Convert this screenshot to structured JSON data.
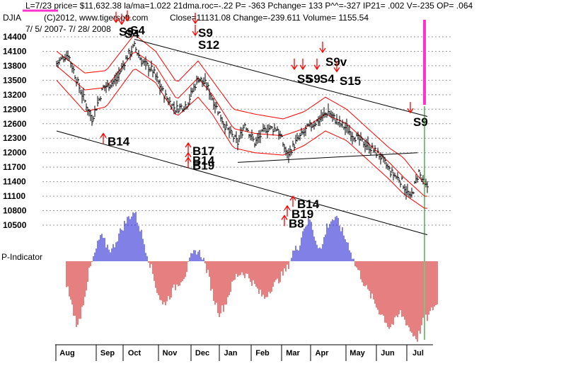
{
  "header": {
    "line1": "L=7/23  price= $11,632.38  la/ma=1.022 21dma.roc=-.22 P= -363 Pchange=  133 P^^=-327 IP21= .002 V=-235 OP= .064",
    "symbol": "DJIA",
    "copyright": "(C)2012, www.tigersoft.com",
    "close_info": "Close=11131.08  Change=-239.611 Volume= 1155.54",
    "date_range": "7/ 5/ 2007- 7/ 28/ 2008"
  },
  "colors": {
    "price_bars": "#000000",
    "bands": "#ff0000",
    "signal_arrows": "#ff0000",
    "magenta_marker": "#ff33cc",
    "p_positive": "#0000cc",
    "p_negative": "#cc0000",
    "current_line": "#008000",
    "grid": "#999999"
  },
  "p_indicator_label": "P-Indicator",
  "chart_data": {
    "type": "bar",
    "title": "DJIA",
    "y_ticks": [
      14400,
      14100,
      13800,
      13500,
      13200,
      12900,
      12600,
      12300,
      12000,
      11700,
      11400,
      11100,
      10800,
      10500
    ],
    "ylim": [
      10400,
      14500
    ],
    "months": [
      "Aug",
      "Sep",
      "Oct",
      "Nov",
      "Dec",
      "Jan",
      "Feb",
      "Mar",
      "Apr",
      "May",
      "Jun",
      "Jul"
    ],
    "price_path": [
      [
        0,
        13850
      ],
      [
        8,
        14050
      ],
      [
        16,
        13350
      ],
      [
        25,
        12700
      ],
      [
        33,
        13350
      ],
      [
        42,
        13500
      ],
      [
        50,
        14000
      ],
      [
        55,
        14200
      ],
      [
        60,
        13900
      ],
      [
        68,
        13700
      ],
      [
        76,
        13200
      ],
      [
        84,
        12900
      ],
      [
        92,
        13000
      ],
      [
        100,
        13550
      ],
      [
        106,
        13400
      ],
      [
        112,
        13000
      ],
      [
        120,
        12500
      ],
      [
        128,
        12200
      ],
      [
        133,
        12600
      ],
      [
        140,
        12200
      ],
      [
        148,
        12500
      ],
      [
        156,
        12500
      ],
      [
        163,
        11950
      ],
      [
        170,
        12250
      ],
      [
        177,
        12500
      ],
      [
        184,
        12650
      ],
      [
        192,
        12850
      ],
      [
        198,
        12650
      ],
      [
        205,
        12500
      ],
      [
        212,
        12300
      ],
      [
        220,
        12150
      ],
      [
        228,
        11950
      ],
      [
        236,
        11600
      ],
      [
        244,
        11400
      ],
      [
        250,
        11050
      ],
      [
        256,
        11600
      ],
      [
        260,
        11300
      ]
    ],
    "upper_band": [
      [
        0,
        14100
      ],
      [
        20,
        13650
      ],
      [
        35,
        13700
      ],
      [
        55,
        14450
      ],
      [
        70,
        14100
      ],
      [
        85,
        13450
      ],
      [
        100,
        13900
      ],
      [
        110,
        13500
      ],
      [
        125,
        12900
      ],
      [
        140,
        12800
      ],
      [
        160,
        12700
      ],
      [
        175,
        12850
      ],
      [
        190,
        13150
      ],
      [
        205,
        12900
      ],
      [
        220,
        12500
      ],
      [
        235,
        12100
      ],
      [
        245,
        11900
      ],
      [
        260,
        11350
      ]
    ],
    "middle_band": [
      [
        0,
        13800
      ],
      [
        20,
        13300
      ],
      [
        35,
        13350
      ],
      [
        55,
        14100
      ],
      [
        70,
        13800
      ],
      [
        85,
        13100
      ],
      [
        100,
        13550
      ],
      [
        110,
        13200
      ],
      [
        125,
        12500
      ],
      [
        140,
        12400
      ],
      [
        160,
        12350
      ],
      [
        175,
        12500
      ],
      [
        190,
        12800
      ],
      [
        205,
        12600
      ],
      [
        220,
        12200
      ],
      [
        235,
        11800
      ],
      [
        245,
        11500
      ],
      [
        260,
        11100
      ]
    ],
    "lower_band": [
      [
        0,
        13500
      ],
      [
        20,
        12850
      ],
      [
        35,
        12950
      ],
      [
        55,
        13750
      ],
      [
        70,
        13450
      ],
      [
        85,
        12750
      ],
      [
        100,
        13150
      ],
      [
        110,
        12800
      ],
      [
        125,
        12100
      ],
      [
        140,
        12000
      ],
      [
        160,
        11950
      ],
      [
        175,
        12150
      ],
      [
        190,
        12450
      ],
      [
        205,
        12250
      ],
      [
        220,
        11850
      ],
      [
        235,
        11450
      ],
      [
        245,
        11150
      ],
      [
        260,
        10850
      ]
    ],
    "p_indicator": [
      [
        0,
        -120
      ],
      [
        5,
        -280
      ],
      [
        8,
        -360
      ],
      [
        12,
        -220
      ],
      [
        16,
        -60
      ],
      [
        20,
        40
      ],
      [
        24,
        140
      ],
      [
        28,
        90
      ],
      [
        32,
        60
      ],
      [
        36,
        130
      ],
      [
        40,
        190
      ],
      [
        44,
        240
      ],
      [
        48,
        270
      ],
      [
        52,
        180
      ],
      [
        56,
        70
      ],
      [
        60,
        -40
      ],
      [
        64,
        -160
      ],
      [
        68,
        -240
      ],
      [
        72,
        -200
      ],
      [
        76,
        -150
      ],
      [
        80,
        -110
      ],
      [
        84,
        -70
      ],
      [
        88,
        20
      ],
      [
        92,
        60
      ],
      [
        96,
        30
      ],
      [
        100,
        -70
      ],
      [
        104,
        -200
      ],
      [
        108,
        -280
      ],
      [
        112,
        -240
      ],
      [
        116,
        -150
      ],
      [
        120,
        -80
      ],
      [
        124,
        -60
      ],
      [
        128,
        -80
      ],
      [
        132,
        -120
      ],
      [
        136,
        -170
      ],
      [
        140,
        -200
      ],
      [
        144,
        -150
      ],
      [
        148,
        -120
      ],
      [
        152,
        -80
      ],
      [
        156,
        -40
      ],
      [
        160,
        50
      ],
      [
        164,
        80
      ],
      [
        168,
        190
      ],
      [
        172,
        230
      ],
      [
        176,
        120
      ],
      [
        180,
        60
      ],
      [
        184,
        190
      ],
      [
        188,
        230
      ],
      [
        192,
        220
      ],
      [
        196,
        140
      ],
      [
        200,
        80
      ],
      [
        204,
        -20
      ],
      [
        208,
        -80
      ],
      [
        212,
        -150
      ],
      [
        216,
        -200
      ],
      [
        220,
        -260
      ],
      [
        224,
        -300
      ],
      [
        228,
        -360
      ],
      [
        232,
        -330
      ],
      [
        236,
        -280
      ],
      [
        240,
        -330
      ],
      [
        244,
        -390
      ],
      [
        248,
        -420
      ],
      [
        252,
        -330
      ],
      [
        256,
        -300
      ],
      [
        260,
        -240
      ]
    ],
    "signals": [
      {
        "label": "S4",
        "x": 52,
        "price": 14450,
        "type": "sell"
      },
      {
        "label": "S9",
        "x": 44,
        "price": 14420,
        "type": "sell"
      },
      {
        "label": "S4",
        "x": 48,
        "price": 14380,
        "type": "sell"
      },
      {
        "label": "S9",
        "x": 100,
        "price": 14400,
        "type": "sell"
      },
      {
        "label": "S12",
        "x": 100,
        "price": 14150,
        "type": "sell"
      },
      {
        "label": "S9v",
        "x": 190,
        "price": 13800,
        "type": "sell"
      },
      {
        "label": "S5",
        "x": 170,
        "price": 13450,
        "type": "sell"
      },
      {
        "label": "S9",
        "x": 176,
        "price": 13450,
        "type": "sell"
      },
      {
        "label": "S4",
        "x": 186,
        "price": 13450,
        "type": "sell"
      },
      {
        "label": "S15",
        "x": 200,
        "price": 13400,
        "type": "sell"
      },
      {
        "label": "S9",
        "x": 252,
        "price": 12550,
        "type": "sell"
      },
      {
        "label": "B14",
        "x": 36,
        "price": 12150,
        "type": "buy"
      },
      {
        "label": "B17",
        "x": 96,
        "price": 11950,
        "type": "buy"
      },
      {
        "label": "B14",
        "x": 96,
        "price": 11750,
        "type": "buy"
      },
      {
        "label": "B19",
        "x": 96,
        "price": 11650,
        "type": "buy"
      },
      {
        "label": "B14",
        "x": 170,
        "price": 10850,
        "type": "buy"
      },
      {
        "label": "B19",
        "x": 166,
        "price": 10650,
        "type": "buy"
      },
      {
        "label": "B8",
        "x": 164,
        "price": 10450,
        "type": "buy"
      }
    ],
    "trendlines": [
      {
        "from": [
          55,
          14350
        ],
        "to": [
          262,
          12750
        ]
      },
      {
        "from": [
          0,
          12450
        ],
        "to": [
          262,
          10300
        ]
      },
      {
        "from": [
          128,
          11800
        ],
        "to": [
          255,
          12000
        ]
      }
    ]
  }
}
